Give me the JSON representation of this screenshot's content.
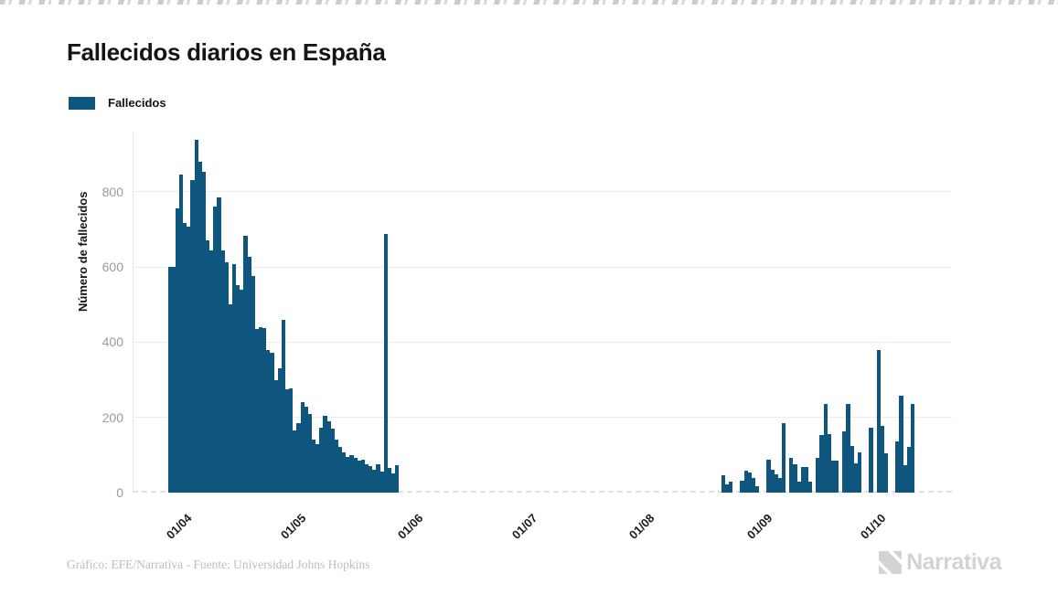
{
  "title": "Fallecidos diarios en España",
  "legend": {
    "label": "Fallecidos",
    "color": "#0F567E"
  },
  "y_axis": {
    "label": "Número de fallecidos",
    "ticks": [
      0,
      200,
      400,
      600,
      800
    ]
  },
  "footer": {
    "credit": "Gráfico: EFE/Narrativa - Fuente: Universidad Johns Hopkins",
    "brand": "Narrativa"
  },
  "chart_data": {
    "type": "bar",
    "title": "Fallecidos diarios en España",
    "series_name": "Fallecidos",
    "xlabel": "",
    "ylabel": "Número de fallecidos",
    "ylim": [
      0,
      960
    ],
    "grid": "horizontal",
    "legend_position": "top-left",
    "bar_color": "#0F567E",
    "start_date": "26/03",
    "date_format": "dd/mm",
    "x_tick_labels": [
      "01/04",
      "01/05",
      "01/06",
      "01/07",
      "01/08",
      "01/09",
      "01/10"
    ],
    "x_tick_day_indices": [
      6,
      36,
      67,
      97,
      128,
      159,
      189
    ],
    "values": [
      600,
      600,
      755,
      845,
      717,
      707,
      830,
      937,
      879,
      854,
      670,
      645,
      760,
      785,
      643,
      613,
      500,
      608,
      552,
      540,
      683,
      626,
      577,
      435,
      440,
      438,
      380,
      373,
      300,
      330,
      460,
      275,
      278,
      165,
      185,
      240,
      228,
      210,
      142,
      128,
      172,
      204,
      190,
      170,
      140,
      122,
      108,
      95,
      100,
      92,
      85,
      88,
      75,
      70,
      62,
      75,
      56,
      688,
      66,
      52,
      74,
      0,
      0,
      0,
      0,
      0,
      0,
      0,
      0,
      0,
      0,
      0,
      0,
      0,
      0,
      0,
      0,
      0,
      0,
      0,
      0,
      0,
      0,
      0,
      0,
      0,
      0,
      0,
      0,
      0,
      0,
      0,
      0,
      0,
      0,
      0,
      0,
      0,
      0,
      0,
      0,
      0,
      0,
      0,
      0,
      0,
      0,
      0,
      0,
      0,
      0,
      0,
      0,
      0,
      0,
      0,
      0,
      0,
      0,
      0,
      0,
      0,
      0,
      0,
      0,
      0,
      0,
      0,
      0,
      0,
      0,
      0,
      0,
      0,
      0,
      0,
      0,
      0,
      0,
      0,
      0,
      0,
      0,
      0,
      0,
      0,
      46,
      22,
      28,
      0,
      0,
      32,
      58,
      53,
      39,
      18,
      0,
      0,
      87,
      60,
      49,
      40,
      185,
      0,
      92,
      76,
      29,
      68,
      68,
      29,
      0,
      93,
      152,
      236,
      156,
      86,
      86,
      0,
      162,
      236,
      123,
      78,
      107,
      0,
      0,
      173,
      0,
      378,
      177,
      105,
      0,
      0,
      136,
      258,
      72,
      121,
      236,
      0,
      0,
      0
    ]
  }
}
